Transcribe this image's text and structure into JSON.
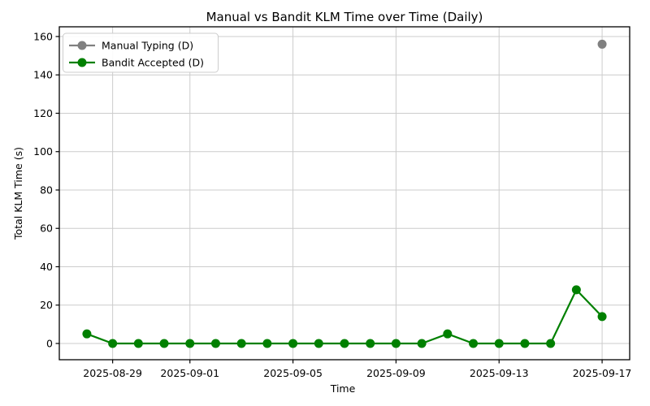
{
  "chart_data": {
    "type": "line",
    "title": "Manual vs Bandit KLM Time over Time (Daily)",
    "xlabel": "Time",
    "ylabel": "Total KLM Time (s)",
    "x": [
      "2025-08-28",
      "2025-08-29",
      "2025-08-30",
      "2025-08-31",
      "2025-09-01",
      "2025-09-02",
      "2025-09-03",
      "2025-09-04",
      "2025-09-05",
      "2025-09-06",
      "2025-09-07",
      "2025-09-08",
      "2025-09-09",
      "2025-09-10",
      "2025-09-11",
      "2025-09-12",
      "2025-09-13",
      "2025-09-14",
      "2025-09-15",
      "2025-09-16",
      "2025-09-17"
    ],
    "series": [
      {
        "name": "Manual Typing (D)",
        "color": "#808080",
        "values": [
          null,
          null,
          null,
          null,
          null,
          null,
          null,
          null,
          null,
          null,
          null,
          null,
          null,
          null,
          null,
          null,
          null,
          null,
          null,
          null,
          156
        ]
      },
      {
        "name": "Bandit Accepted (D)",
        "color": "#008000",
        "values": [
          5,
          0,
          0,
          0,
          0,
          0,
          0,
          0,
          0,
          0,
          0,
          0,
          0,
          0,
          5,
          0,
          0,
          0,
          0,
          28,
          14
        ]
      }
    ],
    "xticks": [
      "2025-08-29",
      "2025-09-01",
      "2025-09-05",
      "2025-09-09",
      "2025-09-13",
      "2025-09-17"
    ],
    "yticks": [
      0,
      20,
      40,
      60,
      80,
      100,
      120,
      140,
      160
    ],
    "ylim": [
      -8.47,
      165.07
    ],
    "x_margin_days": 1.07,
    "grid": true,
    "grid_color": "#cccccc",
    "legend_position": "upper left",
    "background_color": "#ffffff"
  }
}
